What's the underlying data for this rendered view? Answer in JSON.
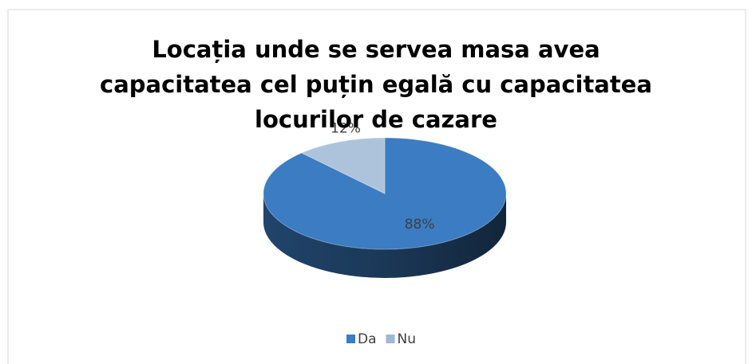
{
  "chart_data": {
    "type": "pie",
    "title": "Locația unde se servea masa avea capacitatea cel puțin egală cu capacitatea locurilor de cazare",
    "categories": [
      "Da",
      "Nu"
    ],
    "values": [
      88,
      12
    ],
    "value_labels": [
      "88%",
      "12%"
    ],
    "colors": [
      "#3b7cc2",
      "#9fb8d6"
    ],
    "legend": "bottom"
  }
}
